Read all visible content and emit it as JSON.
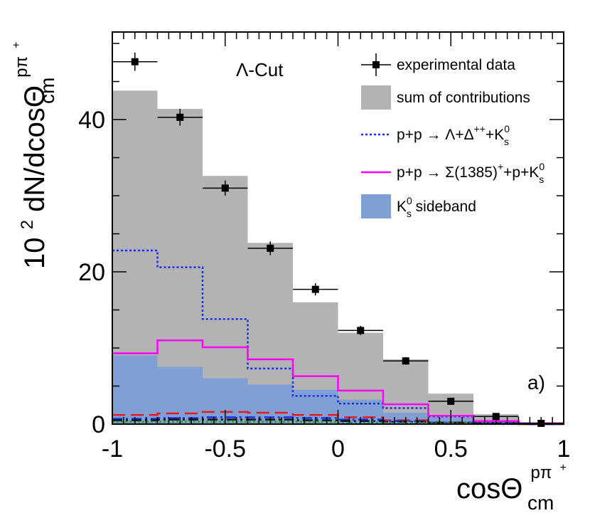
{
  "chart_data": {
    "type": "bar",
    "panel_label": "a)",
    "cut_label": "Λ-Cut",
    "xlabel": {
      "base": "cosΘ",
      "sup": "pπ",
      "sup_charge": "+",
      "sub": "cm"
    },
    "ylabel": {
      "pre": "10",
      "pre_sup": "2",
      "main": " dN/dcosΘ",
      "sup": "pπ",
      "sup_charge": "+",
      "sub": "cm"
    },
    "xlim": [
      -1,
      1
    ],
    "ylim": [
      0,
      51.5
    ],
    "x_ticks": [
      -1,
      -0.5,
      0,
      0.5,
      1
    ],
    "x_tick_labels": [
      "-1",
      "-0.5",
      "0",
      "0.5",
      "1"
    ],
    "y_ticks": [
      0,
      20,
      40
    ],
    "y_tick_labels": [
      "0",
      "20",
      "40"
    ],
    "bin_edges": [
      -1,
      -0.8,
      -0.6,
      -0.4,
      -0.2,
      0,
      0.2,
      0.4,
      0.6,
      0.8,
      1
    ],
    "bin_centers": [
      -0.9,
      -0.7,
      -0.5,
      -0.3,
      -0.1,
      0.1,
      0.3,
      0.5,
      0.7,
      0.9
    ],
    "series": [
      {
        "name": "experimental data",
        "kind": "points",
        "color": "#000000",
        "values": [
          47.6,
          40.3,
          31.0,
          23.1,
          17.7,
          12.3,
          8.3,
          3.0,
          1.0,
          0.1
        ],
        "errors": [
          1.2,
          1.1,
          1.0,
          0.9,
          0.8,
          0.6,
          0.5,
          0.3,
          0.2,
          0.1
        ]
      },
      {
        "name": "sum of contributions",
        "kind": "filled",
        "color": "#b3b3b3",
        "values": [
          43.8,
          41.4,
          32.6,
          23.8,
          16.0,
          12.0,
          8.5,
          4.0,
          1.3,
          0.2
        ]
      },
      {
        "name": "K_s^0 sideband",
        "kind": "filled",
        "color": "#7f9fd5",
        "values": [
          9.0,
          7.5,
          6.0,
          5.2,
          4.5,
          3.2,
          1.5,
          0.9,
          0.3,
          0.1
        ]
      },
      {
        "name": "p+p → Λ+Δ^{++}+K_s^0",
        "kind": "dotted",
        "color": "#1b2ee6",
        "values": [
          22.8,
          20.6,
          13.8,
          7.3,
          3.7,
          2.7,
          2.1,
          1.0,
          0.3,
          0.1
        ]
      },
      {
        "name": "p+p → Σ(1385)^{+}+p+K_s^0",
        "kind": "solid",
        "color": "#ff00ff",
        "values": [
          9.3,
          11.0,
          10.1,
          8.5,
          6.3,
          4.4,
          2.6,
          1.1,
          0.4,
          0.1
        ]
      },
      {
        "name": "",
        "kind": "dashed",
        "color": "#e21c1c",
        "values": [
          1.2,
          1.4,
          1.6,
          1.5,
          1.2,
          0.9,
          0.5,
          0.2,
          0.1,
          0.0
        ]
      },
      {
        "name": "",
        "kind": "dashdot",
        "color": "#1b2ee6",
        "values": [
          0.7,
          0.8,
          0.9,
          0.9,
          0.8,
          0.6,
          0.4,
          0.2,
          0.1,
          0.0
        ]
      },
      {
        "name": "",
        "kind": "dashdot",
        "color": "#111111",
        "values": [
          0.5,
          0.6,
          0.6,
          0.6,
          0.5,
          0.4,
          0.3,
          0.2,
          0.1,
          0.0
        ]
      },
      {
        "name": "",
        "kind": "dotted",
        "color": "#2a9a2a",
        "values": [
          0.3,
          0.3,
          0.3,
          0.3,
          0.3,
          0.2,
          0.2,
          0.1,
          0.0,
          0.0
        ]
      }
    ],
    "legend": [
      {
        "label": "experimental data",
        "style": "marker",
        "color": "#000000"
      },
      {
        "label": "sum of contributions",
        "style": "box",
        "color": "#b3b3b3"
      },
      {
        "label_pre": "p+p → Λ+Δ",
        "label_sup": "++",
        "label_post": "+K",
        "label_sub": "s",
        "label_sup2": "0",
        "style": "dotted",
        "color": "#1b2ee6"
      },
      {
        "label_pre": "p+p → Σ(1385)",
        "label_sup": "+",
        "label_post": "+p+K",
        "label_sub": "s",
        "label_sup2": "0",
        "style": "solid",
        "color": "#ff00ff"
      },
      {
        "label_pre": "K",
        "label_sub": "s",
        "label_sup2": "0",
        "label_post": " sideband",
        "style": "box",
        "color": "#7f9fd5"
      }
    ],
    "legend_position": "top-right"
  }
}
